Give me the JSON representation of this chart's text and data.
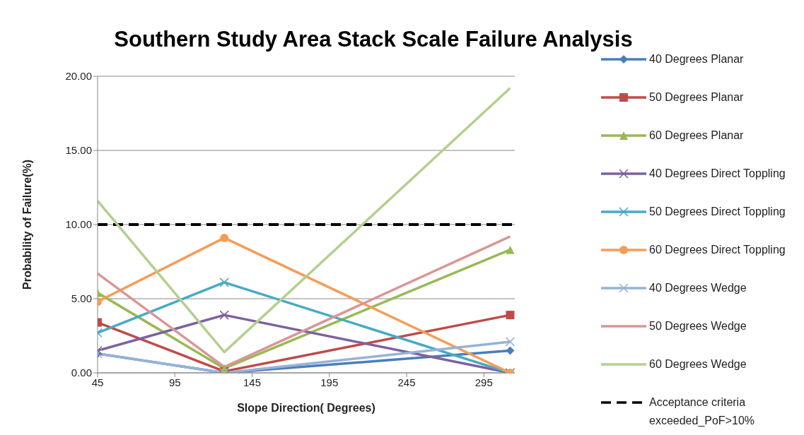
{
  "chart_data": {
    "type": "line",
    "title": "Southern Study Area Stack Scale Failure Analysis",
    "xlabel": "Slope Direction( Degrees)",
    "ylabel": "Probability of Failure(%)",
    "x": [
      45,
      127,
      312
    ],
    "xlim": [
      45,
      315
    ],
    "xticks": [
      45,
      95,
      145,
      195,
      245,
      295
    ],
    "ylim": [
      0,
      20
    ],
    "yticks": [
      {
        "value": 0,
        "label": "0.00"
      },
      {
        "value": 5,
        "label": "5.00"
      },
      {
        "value": 10,
        "label": "10.00"
      },
      {
        "value": 15,
        "label": "15.00"
      },
      {
        "value": 20,
        "label": "20.00"
      }
    ],
    "grid": "y",
    "legend": "right",
    "series": [
      {
        "name": "40 Degrees Planar",
        "color": "#4a7ebb",
        "marker": "diamond",
        "values": [
          1.3,
          0,
          1.5
        ]
      },
      {
        "name": "50 Degrees Planar",
        "color": "#be4b48",
        "marker": "square",
        "values": [
          3.4,
          0.1,
          3.9
        ]
      },
      {
        "name": "60 Degrees Planar",
        "color": "#98b954",
        "marker": "triangle",
        "values": [
          5.4,
          0.3,
          8.3
        ]
      },
      {
        "name": "40 Degrees Direct Toppling",
        "color": "#7d60a0",
        "marker": "cross",
        "values": [
          1.5,
          3.9,
          0
        ]
      },
      {
        "name": "50 Degrees Direct Toppling",
        "color": "#46aac5",
        "marker": "cross",
        "values": [
          2.7,
          6.1,
          0
        ]
      },
      {
        "name": "60 Degrees Direct Toppling",
        "color": "#f59d56",
        "marker": "circle",
        "values": [
          4.8,
          9.1,
          0
        ]
      },
      {
        "name": "40 Degrees Wedge",
        "color": "#95b3d7",
        "marker": "cross",
        "values": [
          1.3,
          0,
          2.1
        ]
      },
      {
        "name": "50 Degrees Wedge",
        "color": "#d99694",
        "marker": "none",
        "values": [
          6.7,
          0.4,
          9.2
        ]
      },
      {
        "name": "60 Degrees Wedge",
        "color": "#b3d08f",
        "marker": "none",
        "values": [
          11.6,
          1.4,
          19.2
        ]
      }
    ],
    "ref_lines": [
      {
        "axis": "y",
        "value": 10,
        "label": "Acceptance criteria exceeded_PoF>10%",
        "color": "#000000",
        "line_style": "dashed"
      }
    ]
  }
}
